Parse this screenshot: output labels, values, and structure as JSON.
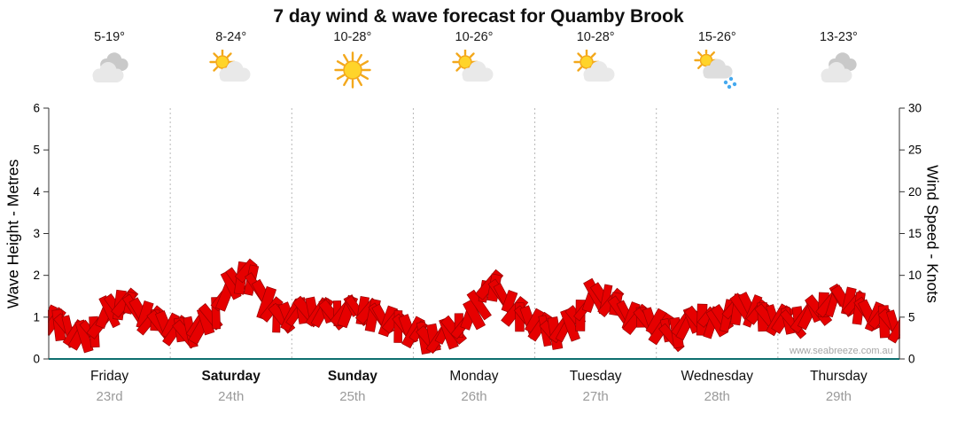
{
  "title": "7 day wind & wave forecast for Quamby Brook",
  "watermark": "www.seabreeze.com.au",
  "colors": {
    "wind_fill": "#e60000",
    "wind_stroke": "#9a0000",
    "grid": "#b8b8b8",
    "axis": "#333333",
    "baseline": "#0e6f6f",
    "date_text": "#9a9a9a",
    "watermark_text": "#a6a6a6"
  },
  "forecast": {
    "days": [
      {
        "name": "Friday",
        "date": "23rd",
        "temp": "5-19°",
        "icon": "cloudy",
        "emphasis": false
      },
      {
        "name": "Saturday",
        "date": "24th",
        "temp": "8-24°",
        "icon": "sun-cloud",
        "emphasis": true
      },
      {
        "name": "Sunday",
        "date": "25th",
        "temp": "10-28°",
        "icon": "sunny",
        "emphasis": true
      },
      {
        "name": "Monday",
        "date": "26th",
        "temp": "10-26°",
        "icon": "sun-cloud",
        "emphasis": false
      },
      {
        "name": "Tuesday",
        "date": "27th",
        "temp": "10-28°",
        "icon": "sun-cloud",
        "emphasis": false
      },
      {
        "name": "Wednesday",
        "date": "28th",
        "temp": "15-26°",
        "icon": "sun-rain",
        "emphasis": false
      },
      {
        "name": "Thursday",
        "date": "29th",
        "temp": "13-23°",
        "icon": "cloudy",
        "emphasis": false
      }
    ]
  },
  "chart_data": {
    "type": "area",
    "title": "7 day wind & wave forecast for Quamby Brook",
    "categories": [
      "Friday 23rd",
      "Saturday 24th",
      "Sunday 25th",
      "Monday 26th",
      "Tuesday 27th",
      "Wednesday 28th",
      "Thursday 29th"
    ],
    "left_axis": {
      "label": "Wave Height - Metres",
      "min": 0,
      "max": 6,
      "ticks": [
        0,
        1,
        2,
        3,
        4,
        5,
        6
      ]
    },
    "right_axis": {
      "label": "Wind Speed - Knots",
      "min": 0,
      "max": 30,
      "ticks": [
        0,
        5,
        10,
        15,
        20,
        25,
        30
      ]
    },
    "grid": "vertical dotted lines at day boundaries",
    "legend": "none",
    "series": [
      {
        "name": "Wind Speed",
        "unit": "knots",
        "samples_per_day": 8,
        "values": [
          6.0,
          5.0,
          3.8,
          4.5,
          7.0,
          8.0,
          6.8,
          5.5,
          5.0,
          4.2,
          5.0,
          6.8,
          10.0,
          11.5,
          9.0,
          6.0,
          6.5,
          7.0,
          6.8,
          6.5,
          7.2,
          6.8,
          6.0,
          5.2,
          4.5,
          3.5,
          4.0,
          5.0,
          6.5,
          10.2,
          8.5,
          6.2,
          5.5,
          4.2,
          4.8,
          6.5,
          9.0,
          8.0,
          6.5,
          5.8,
          5.5,
          3.8,
          5.5,
          6.0,
          5.5,
          7.0,
          7.5,
          6.2,
          6.0,
          5.5,
          6.5,
          7.5,
          8.5,
          7.8,
          6.5,
          5.8,
          5.0
        ]
      }
    ]
  }
}
